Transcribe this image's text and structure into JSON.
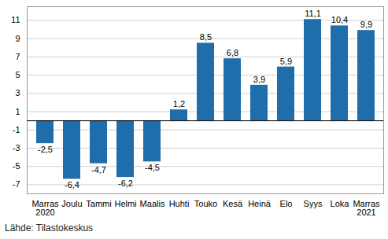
{
  "chart_data": {
    "type": "bar",
    "caption": "Lähde: Tilastokeskus",
    "categories": [
      "Marras\n2020",
      "Joulu",
      "Tammi",
      "Helmi",
      "Maalis",
      "Huhti",
      "Touko",
      "Kesä",
      "Heinä",
      "Elo",
      "Syys",
      "Loka",
      "Marras\n2021"
    ],
    "values": [
      -2.5,
      -6.4,
      -4.7,
      -6.2,
      -4.5,
      1.2,
      8.5,
      6.8,
      3.9,
      5.9,
      11.1,
      10.4,
      9.9
    ],
    "value_labels": [
      "-2,5",
      "-6,4",
      "-4,7",
      "-6,2",
      "-4,5",
      "1,2",
      "8,5",
      "6,8",
      "3,9",
      "5,9",
      "11,1",
      "10,4",
      "9,9"
    ],
    "data_labels": true,
    "color": "#1f6eab",
    "ylim": [
      -8,
      12.5
    ],
    "yticks": [
      -7,
      -5,
      -3,
      -1,
      1,
      3,
      5,
      7,
      9,
      11
    ],
    "grid": true
  }
}
